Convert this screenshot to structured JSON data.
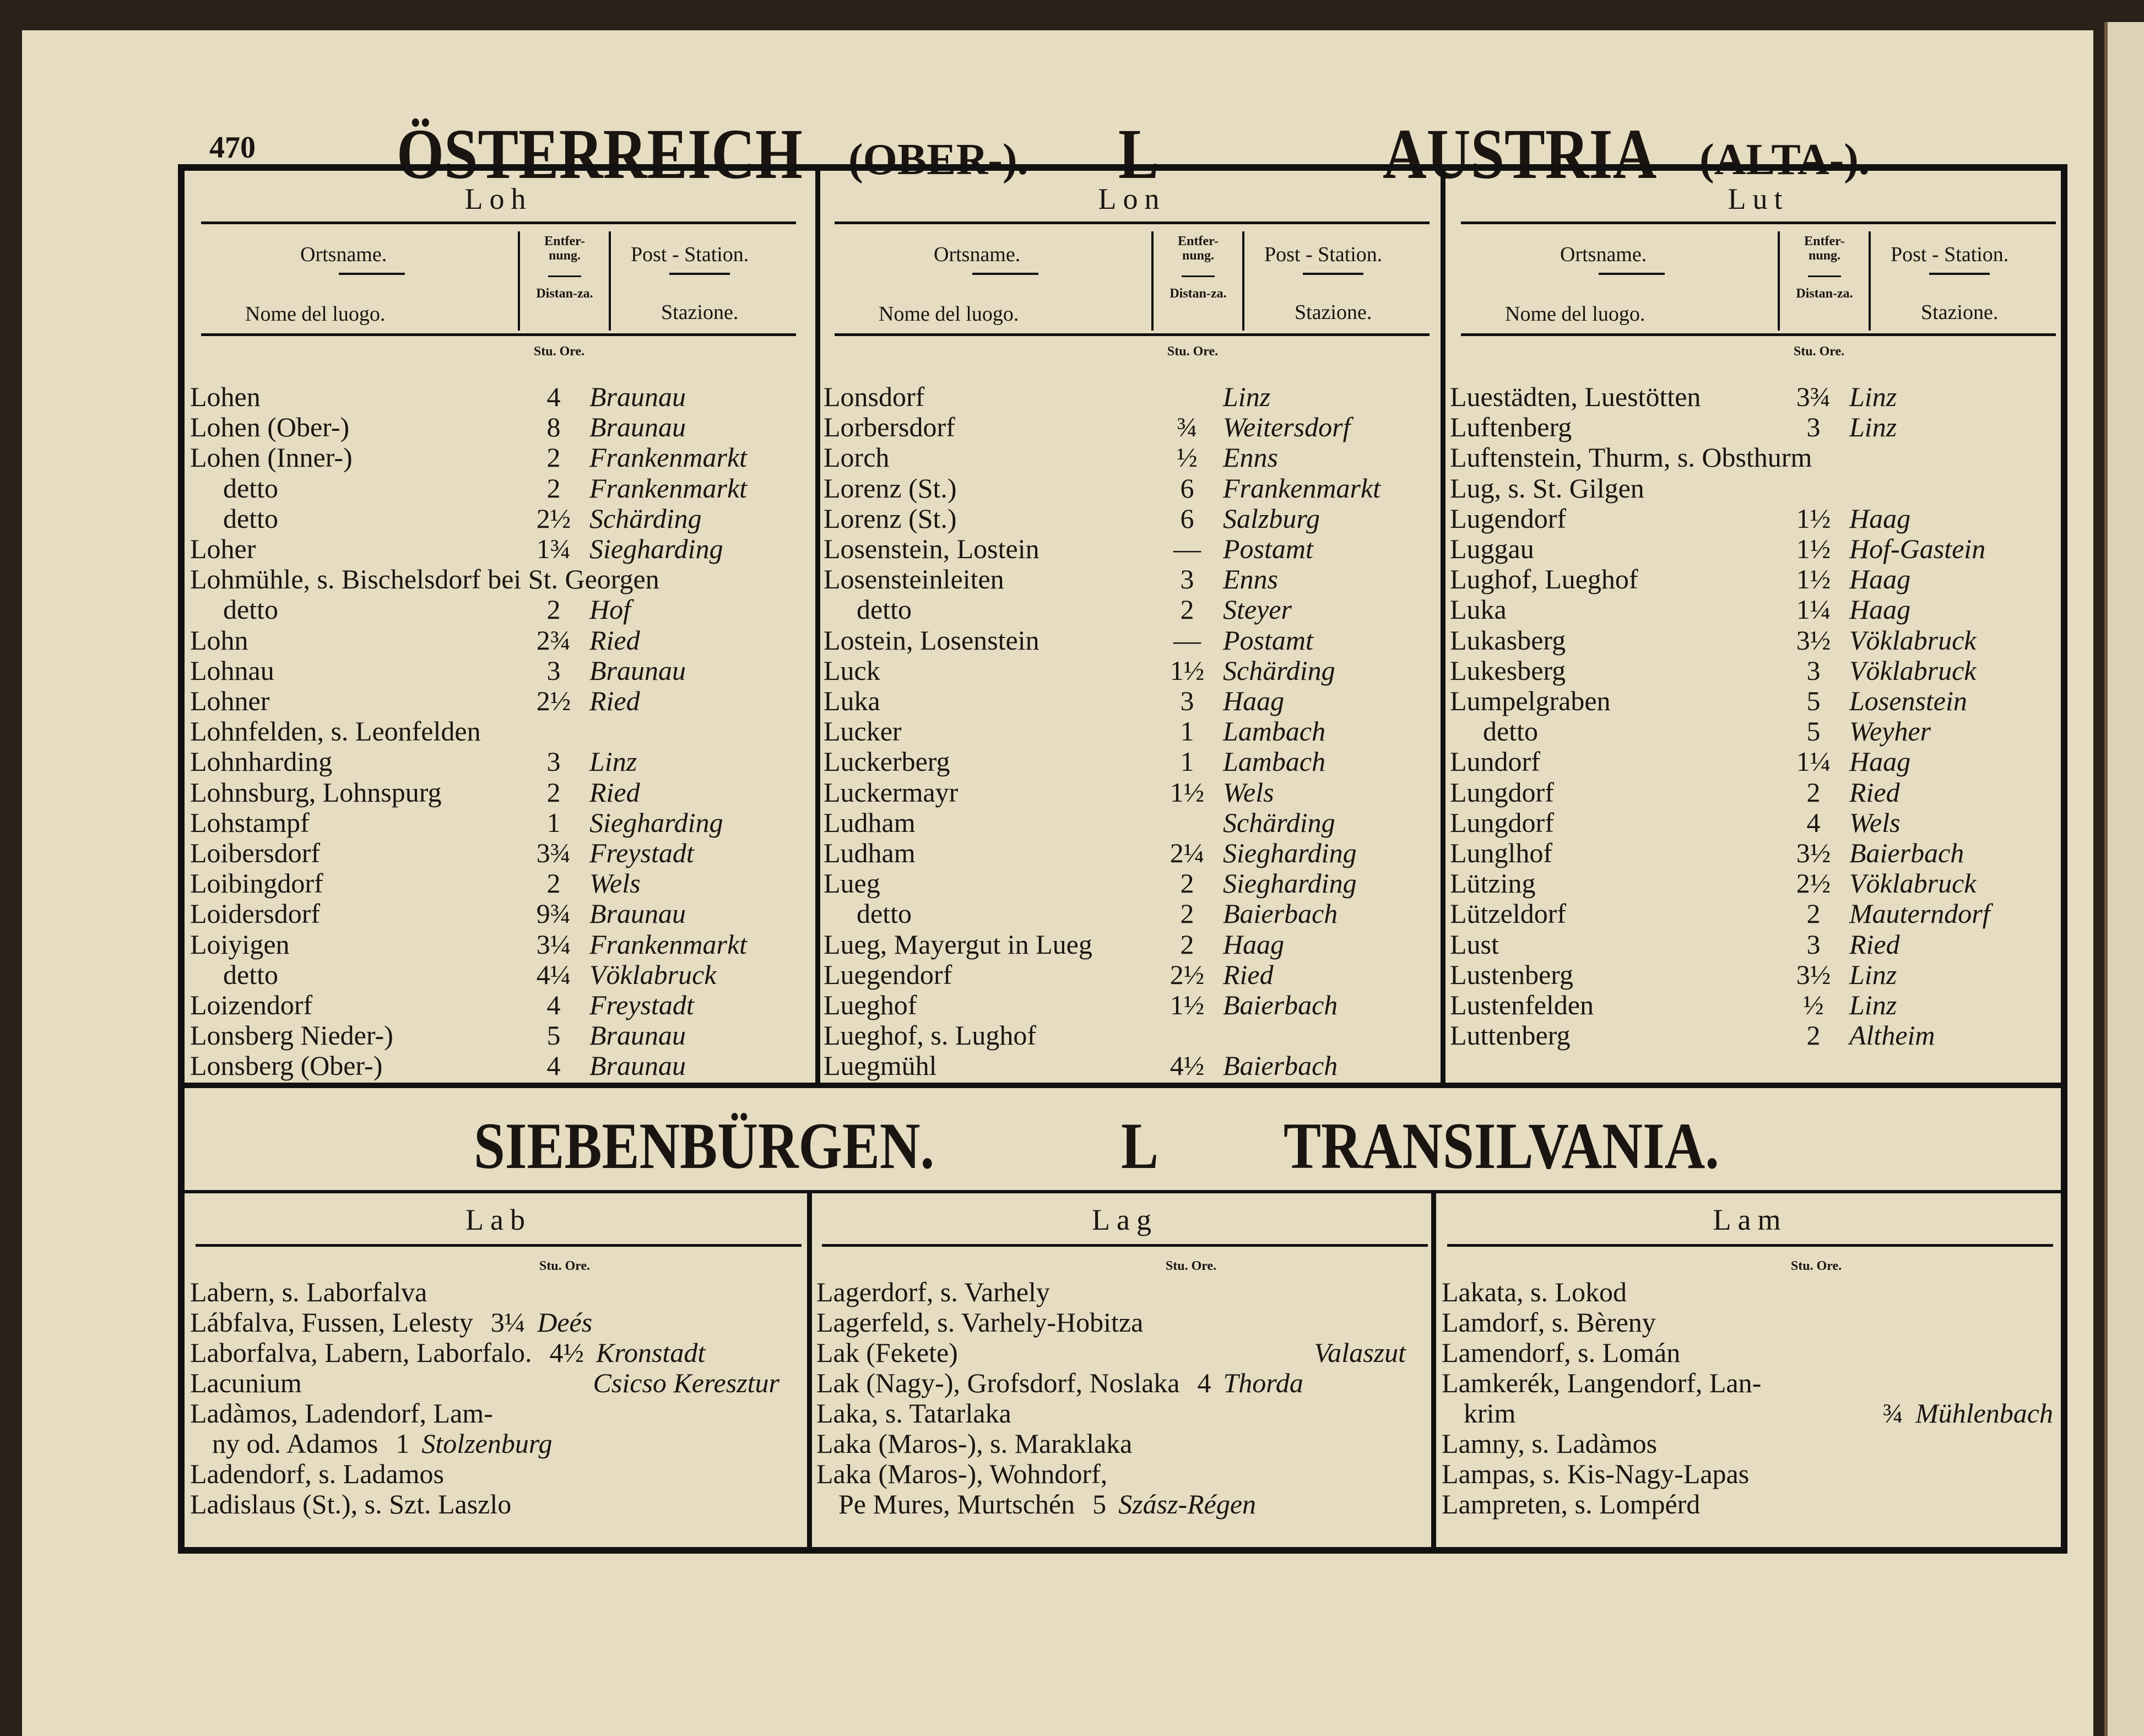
{
  "header": {
    "page_number": "470",
    "title_left": "ÖSTERREICH",
    "title_left_sub": "(OBER-).",
    "letter": "L",
    "title_right": "AUSTRIA",
    "title_right_sub": "(ALTA-)."
  },
  "column_headers": {
    "place": "Ortsname.",
    "place_it": "Nome del luogo.",
    "dist": "Entfer-nung.",
    "dist_it": "Distan-za.",
    "post": "Post - Station.",
    "post_it": "Stazione.",
    "unit": "Stu. Ore."
  },
  "top_sections": [
    {
      "heading": "Loh",
      "rows": [
        {
          "name": "Lohen",
          "dist": "4",
          "station": "Braunau"
        },
        {
          "name": "Lohen (Ober-)",
          "dist": "8",
          "station": "Braunau"
        },
        {
          "name": "Lohen (Inner-)",
          "dist": "2",
          "station": "Frankenmarkt"
        },
        {
          "name": "detto",
          "dist": "2",
          "station": "Frankenmarkt"
        },
        {
          "name": "detto",
          "dist": "2½",
          "station": "Schärding"
        },
        {
          "name": "Loher",
          "dist": "1¾",
          "station": "Siegharding"
        },
        {
          "name": "Lohmühle, s. Bischelsdorf bei St. Georgen"
        },
        {
          "name": "detto",
          "dist": "2",
          "station": "Hof"
        },
        {
          "name": "Lohn",
          "dist": "2¾",
          "station": "Ried"
        },
        {
          "name": "Lohnau",
          "dist": "3",
          "station": "Braunau"
        },
        {
          "name": "Lohner",
          "dist": "2½",
          "station": "Ried"
        },
        {
          "name": "Lohnfelden, s. Leonfelden"
        },
        {
          "name": "Lohnharding",
          "dist": "3",
          "station": "Linz"
        },
        {
          "name": "Lohnsburg, Lohnspurg",
          "dist": "2",
          "station": "Ried"
        },
        {
          "name": "Lohstampf",
          "dist": "1",
          "station": "Siegharding"
        },
        {
          "name": "Loibersdorf",
          "dist": "3¾",
          "station": "Freystadt"
        },
        {
          "name": "Loibingdorf",
          "dist": "2",
          "station": "Wels"
        },
        {
          "name": "Loidersdorf",
          "dist": "9¾",
          "station": "Braunau"
        },
        {
          "name": "Loiyigen",
          "dist": "3¼",
          "station": "Frankenmarkt"
        },
        {
          "name": "detto",
          "dist": "4¼",
          "station": "Vöklabruck"
        },
        {
          "name": "Loizendorf",
          "dist": "4",
          "station": "Freystadt"
        },
        {
          "name": "Lonsberg Nieder-)",
          "dist": "5",
          "station": "Braunau"
        },
        {
          "name": "Lonsberg (Ober-)",
          "dist": "4",
          "station": "Braunau"
        }
      ]
    },
    {
      "heading": "Lon",
      "rows": [
        {
          "name": "Lonsdorf",
          "station": "Linz"
        },
        {
          "name": "Lorbersdorf",
          "dist": "¾",
          "station": "Weitersdorf"
        },
        {
          "name": "Lorch",
          "dist": "½",
          "station": "Enns"
        },
        {
          "name": "Lorenz (St.)",
          "dist": "6",
          "station": "Frankenmarkt"
        },
        {
          "name": "Lorenz (St.)",
          "dist": "6",
          "station": "Salzburg"
        },
        {
          "name": "Losenstein, Lostein",
          "dist": "—",
          "station": "Postamt"
        },
        {
          "name": "Losensteinleiten",
          "dist": "3",
          "station": "Enns"
        },
        {
          "name": "detto",
          "dist": "2",
          "station": "Steyer"
        },
        {
          "name": "Lostein, Losenstein",
          "dist": "—",
          "station": "Postamt"
        },
        {
          "name": "Luck",
          "dist": "1½",
          "station": "Schärding"
        },
        {
          "name": "Luka",
          "dist": "3",
          "station": "Haag"
        },
        {
          "name": "Lucker",
          "dist": "1",
          "station": "Lambach"
        },
        {
          "name": "Luckerberg",
          "dist": "1",
          "station": "Lambach"
        },
        {
          "name": "Luckermayr",
          "dist": "1½",
          "station": "Wels"
        },
        {
          "name": "Ludham",
          "station": "Schärding"
        },
        {
          "name": "Ludham",
          "dist": "2¼",
          "station": "Siegharding"
        },
        {
          "name": "Lueg",
          "dist": "2",
          "station": "Siegharding"
        },
        {
          "name": "detto",
          "dist": "2",
          "station": "Baierbach"
        },
        {
          "name": "Lueg, Mayergut in Lueg",
          "dist": "2",
          "station": "Haag"
        },
        {
          "name": "Luegendorf",
          "dist": "2½",
          "station": "Ried"
        },
        {
          "name": "Lueghof",
          "dist": "1½",
          "station": "Baierbach"
        },
        {
          "name": "Lueghof, s. Lughof"
        },
        {
          "name": "Luegmühl",
          "dist": "4½",
          "station": "Baierbach"
        }
      ]
    },
    {
      "heading": "Lut",
      "rows": [
        {
          "name": "Luestädten, Luestötten",
          "dist": "3¾",
          "station": "Linz"
        },
        {
          "name": "Luftenberg",
          "dist": "3",
          "station": "Linz"
        },
        {
          "name": "Luftenstein, Thurm, s. Obsthurm"
        },
        {
          "name": "Lug, s. St. Gilgen"
        },
        {
          "name": "Lugendorf",
          "dist": "1½",
          "station": "Haag"
        },
        {
          "name": "Luggau",
          "dist": "1½",
          "station": "Hof-Gastein"
        },
        {
          "name": "Lughof, Lueghof",
          "dist": "1½",
          "station": "Haag"
        },
        {
          "name": "Luka",
          "dist": "1¼",
          "station": "Haag"
        },
        {
          "name": "Lukasberg",
          "dist": "3½",
          "station": "Vöklabruck"
        },
        {
          "name": "Lukesberg",
          "dist": "3",
          "station": "Vöklabruck"
        },
        {
          "name": "Lumpelgraben",
          "dist": "5",
          "station": "Losenstein"
        },
        {
          "name": "detto",
          "dist": "5",
          "station": "Weyher"
        },
        {
          "name": "Lundorf",
          "dist": "1¼",
          "station": "Haag"
        },
        {
          "name": "Lungdorf",
          "dist": "2",
          "station": "Ried"
        },
        {
          "name": "Lungdorf",
          "dist": "4",
          "station": "Wels"
        },
        {
          "name": "Lunglhof",
          "dist": "3½",
          "station": "Baierbach"
        },
        {
          "name": "Lützing",
          "dist": "2½",
          "station": "Vöklabruck"
        },
        {
          "name": "Lützeldorf",
          "dist": "2",
          "station": "Mauterndorf"
        },
        {
          "name": "Lust",
          "dist": "3",
          "station": "Ried"
        },
        {
          "name": "Lustenberg",
          "dist": "3½",
          "station": "Linz"
        },
        {
          "name": "Lustenfelden",
          "dist": "½",
          "station": "Linz"
        },
        {
          "name": "Luttenberg",
          "dist": "2",
          "station": "Altheim"
        }
      ]
    }
  ],
  "section2": {
    "title_left": "SIEBENBÜRGEN.",
    "letter": "L",
    "title_right": "TRANSILVANIA."
  },
  "bottom_sections": [
    {
      "heading": "Lab",
      "rows": [
        {
          "name": "Labern, s. Laborfalva"
        },
        {
          "name": "Lábfalva, Fussen, Lelesty",
          "dist": "3¼",
          "station": "Deés"
        },
        {
          "name": "Laborfalva, Labern, Laborfalo.",
          "dist": "4½",
          "station": "Kronstadt"
        },
        {
          "name": "Lacunium",
          "station": "Csicso Keresztur"
        },
        {
          "name": "Ladàmos, Ladendorf, Lam-"
        },
        {
          "name": "ny od. Adamos",
          "dist": "1",
          "station": "Stolzenburg"
        },
        {
          "name": "Ladendorf, s. Ladamos"
        },
        {
          "name": "Ladislaus (St.), s. Szt. Laszlo"
        }
      ]
    },
    {
      "heading": "Lag",
      "rows": [
        {
          "name": "Lagerdorf, s. Varhely"
        },
        {
          "name": "Lagerfeld, s. Varhely-Hobitza"
        },
        {
          "name": "Lak (Fekete)",
          "station": "Valaszut"
        },
        {
          "name": "Lak (Nagy-), Grofsdorf, Noslaka",
          "dist": "4",
          "station": "Thorda"
        },
        {
          "name": "Laka, s. Tatarlaka"
        },
        {
          "name": "Laka (Maros-), s. Maraklaka"
        },
        {
          "name": "Laka (Maros-), Wohndorf,"
        },
        {
          "name": "Pe Mures, Murtschén",
          "dist": "5",
          "station": "Szász-Régen"
        }
      ]
    },
    {
      "heading": "Lam",
      "rows": [
        {
          "name": "Lakata, s. Lokod"
        },
        {
          "name": "Lamdorf, s. Bèreny"
        },
        {
          "name": "Lamendorf, s. Lomán"
        },
        {
          "name": "Lamkerék, Langendorf, Lan-"
        },
        {
          "name": "krim",
          "dist": "¾",
          "station": "Mühlenbach"
        },
        {
          "name": "Lamny, s. Ladàmos"
        },
        {
          "name": "Lampas, s. Kis-Nagy-Lapas"
        },
        {
          "name": "Lampreten, s. Lompérd"
        }
      ]
    }
  ]
}
